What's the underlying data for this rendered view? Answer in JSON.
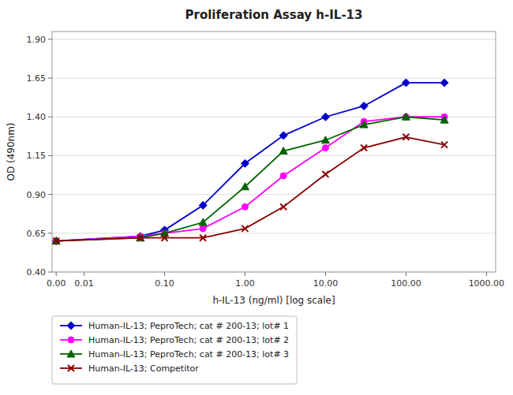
{
  "chart_data": {
    "type": "line",
    "title": "Proliferation Assay h-IL-13",
    "x_label": "h-IL-13 (ng/ml) [log scale]",
    "y_label": "OD (490nm)",
    "log": "x",
    "grid": "y",
    "legend": "bottom",
    "xlim": [
      0.004,
      1300
    ],
    "xticks": [
      {
        "value": 0.0045,
        "label": "0.00"
      },
      0.01,
      {
        "value": 0.1,
        "label": "0.10"
      },
      {
        "value": 1.0,
        "label": "1.00"
      },
      {
        "value": 10.0,
        "label": "10.00"
      },
      {
        "value": 100.0,
        "label": "100.00"
      },
      {
        "value": 1000.0,
        "label": "1000.00"
      }
    ],
    "ylim": [
      0.4,
      1.95
    ],
    "yticks": [
      {
        "value": 0.4,
        "label": "0.40"
      },
      0.65,
      {
        "value": 0.9,
        "label": "0.90"
      },
      1.15,
      {
        "value": 1.4,
        "label": "1.40"
      },
      1.65,
      {
        "value": 1.9,
        "label": "1.90"
      }
    ],
    "x": [
      0.0045,
      0.05,
      0.1,
      0.3,
      1.0,
      3.0,
      10.0,
      30.0,
      100.0,
      300.0
    ],
    "series": [
      {
        "name": "Human-IL-13; PeproTech; cat # 200-13; lot# 1",
        "color": "#0000CC",
        "marker": "diamond",
        "values": [
          0.6,
          0.63,
          0.67,
          0.83,
          1.1,
          1.28,
          1.4,
          1.47,
          1.62,
          1.62
        ]
      },
      {
        "name": "Human-IL-13; PeproTech; cat # 200-13; lot# 2",
        "color": "#FF00FF",
        "marker": "circle",
        "values": [
          0.6,
          0.63,
          0.65,
          0.68,
          0.82,
          1.02,
          1.2,
          1.37,
          1.4,
          1.4
        ]
      },
      {
        "name": "Human-IL-13; PeproTech; cat # 200-13; lot# 3",
        "color": "#006400",
        "marker": "triangle",
        "values": [
          0.6,
          0.62,
          0.65,
          0.72,
          0.95,
          1.18,
          1.25,
          1.35,
          1.4,
          1.38
        ]
      },
      {
        "name": "Human-IL-13; Competitor",
        "color": "#8B0000",
        "marker": "x",
        "values": [
          0.6,
          0.62,
          0.62,
          0.62,
          0.68,
          0.82,
          1.03,
          1.2,
          1.27,
          1.22
        ]
      }
    ]
  }
}
